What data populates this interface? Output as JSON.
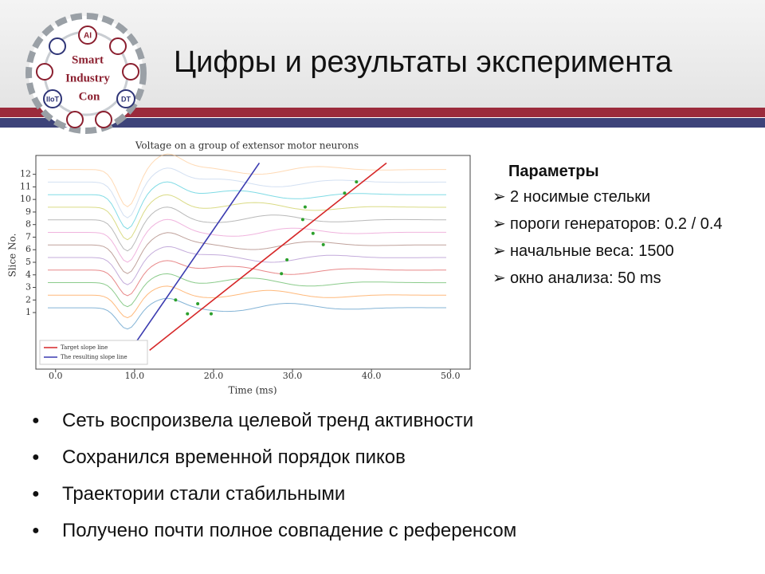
{
  "header": {
    "title": "Цифры и результаты эксперимента",
    "logo": {
      "labels": [
        "AI",
        "Smart",
        "Industry",
        "Con",
        "IIoT",
        "DT"
      ]
    }
  },
  "chart_data": {
    "type": "line",
    "title": "Voltage on a group of extensor motor neurons",
    "x_label": "Time (ms)",
    "y_label": "Slice No.",
    "xlim": [
      -2.5,
      52.5
    ],
    "xticks": [
      {
        "value": 0,
        "label": "0.0"
      },
      {
        "value": 10,
        "label": "10.0"
      },
      {
        "value": 20,
        "label": "20.0"
      },
      {
        "value": 30,
        "label": "30.0"
      },
      {
        "value": 40,
        "label": "40.0"
      },
      {
        "value": 50,
        "label": "50.0"
      }
    ],
    "ylim": [
      -3.5,
      13.5
    ],
    "yticks": [
      1,
      2,
      3,
      4,
      5,
      6,
      7,
      8,
      9,
      10,
      11,
      12
    ],
    "series": [
      {
        "name": "Target slope line",
        "color": "#d62728",
        "x": [
          11.9,
          41.9
        ],
        "values": [
          -2.0,
          12.9
        ]
      },
      {
        "name": "The resulting slope line",
        "color": "#3b3bb0",
        "x": [
          8.6,
          25.8
        ],
        "values": [
          -2.8,
          12.9
        ]
      }
    ],
    "peaks": {
      "color": "#2ca02c",
      "x": [
        15.2,
        16.7,
        18.0,
        19.7,
        28.6,
        29.3,
        31.3,
        31.6,
        32.6,
        33.9,
        36.6,
        38.1
      ],
      "values": [
        2.0,
        0.9,
        1.7,
        0.9,
        4.1,
        5.2,
        8.4,
        9.4,
        7.3,
        6.4,
        10.5,
        11.4
      ]
    },
    "legend": "lower left"
  },
  "parameters": {
    "heading": "Параметры",
    "marker": "➢",
    "items": [
      "2 носимые стельки",
      "пороги генераторов: 0.2 / 0.4",
      "начальные веса: 1500",
      "окно анализа: 50 ms"
    ]
  },
  "bullets": {
    "marker": "●",
    "items": [
      "Сеть воспроизвела целевой тренд активности",
      "Сохранился временной порядок пиков",
      "Траектории стали стабильными",
      "Получено почти полное совпадение с референсом"
    ]
  }
}
